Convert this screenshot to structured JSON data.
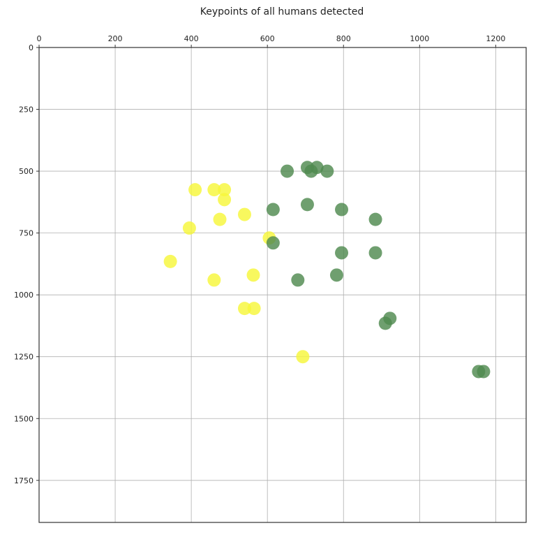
{
  "chart_data": {
    "type": "scatter",
    "title": "Keypoints of all humans detected",
    "xlabel": "",
    "ylabel": "",
    "x_axis_position": "top",
    "y_axis_inverted": true,
    "xlim": [
      0,
      1280
    ],
    "ylim": [
      1920,
      0
    ],
    "x_ticks": [
      0,
      200,
      400,
      600,
      800,
      1000,
      1200
    ],
    "y_ticks": [
      0,
      250,
      500,
      750,
      1000,
      1250,
      1500,
      1750
    ],
    "grid": true,
    "legend": "none",
    "series": [
      {
        "color": "#f7f73a",
        "points": [
          [
            410,
            575
          ],
          [
            460,
            575
          ],
          [
            487,
            575
          ],
          [
            487,
            615
          ],
          [
            475,
            695
          ],
          [
            540,
            675
          ],
          [
            395,
            730
          ],
          [
            605,
            770
          ],
          [
            345,
            865
          ],
          [
            460,
            940
          ],
          [
            563,
            920
          ],
          [
            540,
            1055
          ],
          [
            565,
            1055
          ],
          [
            693,
            1250
          ]
        ]
      },
      {
        "color": "#4f8a4f",
        "points": [
          [
            652,
            500
          ],
          [
            705,
            485
          ],
          [
            730,
            485
          ],
          [
            715,
            500
          ],
          [
            757,
            500
          ],
          [
            615,
            655
          ],
          [
            705,
            635
          ],
          [
            795,
            655
          ],
          [
            884,
            695
          ],
          [
            615,
            790
          ],
          [
            795,
            830
          ],
          [
            884,
            830
          ],
          [
            680,
            940
          ],
          [
            782,
            920
          ],
          [
            922,
            1095
          ],
          [
            910,
            1115
          ],
          [
            1155,
            1310
          ],
          [
            1168,
            1310
          ]
        ]
      }
    ]
  }
}
